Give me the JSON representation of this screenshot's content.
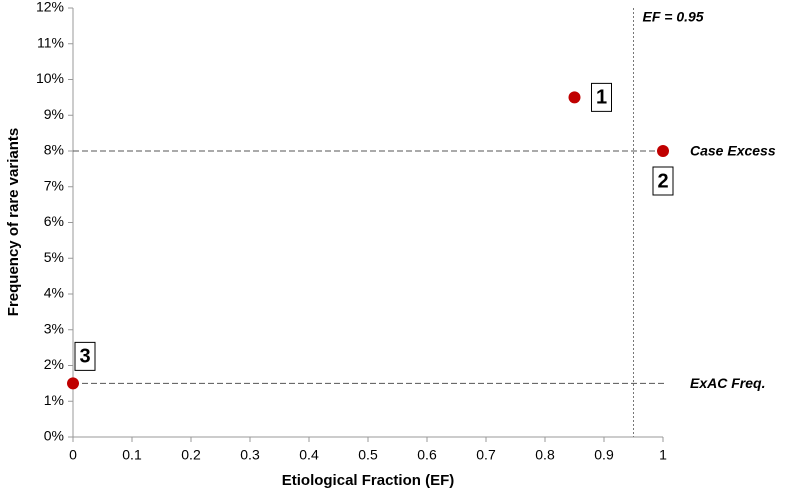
{
  "chart_data": {
    "type": "scatter",
    "x_label": "Etiological Fraction (EF)",
    "y_label": "Frequency of rare variants",
    "x": [
      0.85,
      1,
      0
    ],
    "values": [
      9.5,
      8,
      1.5
    ],
    "point_labels": [
      "1",
      "2",
      "3"
    ],
    "color": "#c00000",
    "xlim": [
      0,
      1
    ],
    "xticks": [
      0,
      0.1,
      0.2,
      0.3,
      0.4,
      0.5,
      0.6,
      0.7,
      0.8,
      0.9,
      1
    ],
    "ylim": [
      0,
      12
    ],
    "yticks": [
      {
        "value": 0,
        "label": "0%"
      },
      {
        "value": 1,
        "label": "1%"
      },
      {
        "value": 2,
        "label": "2%"
      },
      {
        "value": 3,
        "label": "3%"
      },
      {
        "value": 4,
        "label": "4%"
      },
      {
        "value": 5,
        "label": "5%"
      },
      {
        "value": 6,
        "label": "6%"
      },
      {
        "value": 7,
        "label": "7%"
      },
      {
        "value": 8,
        "label": "8%"
      },
      {
        "value": 9,
        "label": "9%"
      },
      {
        "value": 10,
        "label": "10%"
      },
      {
        "value": 11,
        "label": "11%"
      },
      {
        "value": 12,
        "label": "12%"
      }
    ],
    "grid": false,
    "hlines": [
      {
        "value": 8,
        "label": "Case Excess"
      },
      {
        "value": 1.5,
        "label": "ExAC Freq."
      }
    ],
    "vlines": [
      {
        "value": 0.95,
        "label": "EF = 0.95"
      }
    ]
  }
}
